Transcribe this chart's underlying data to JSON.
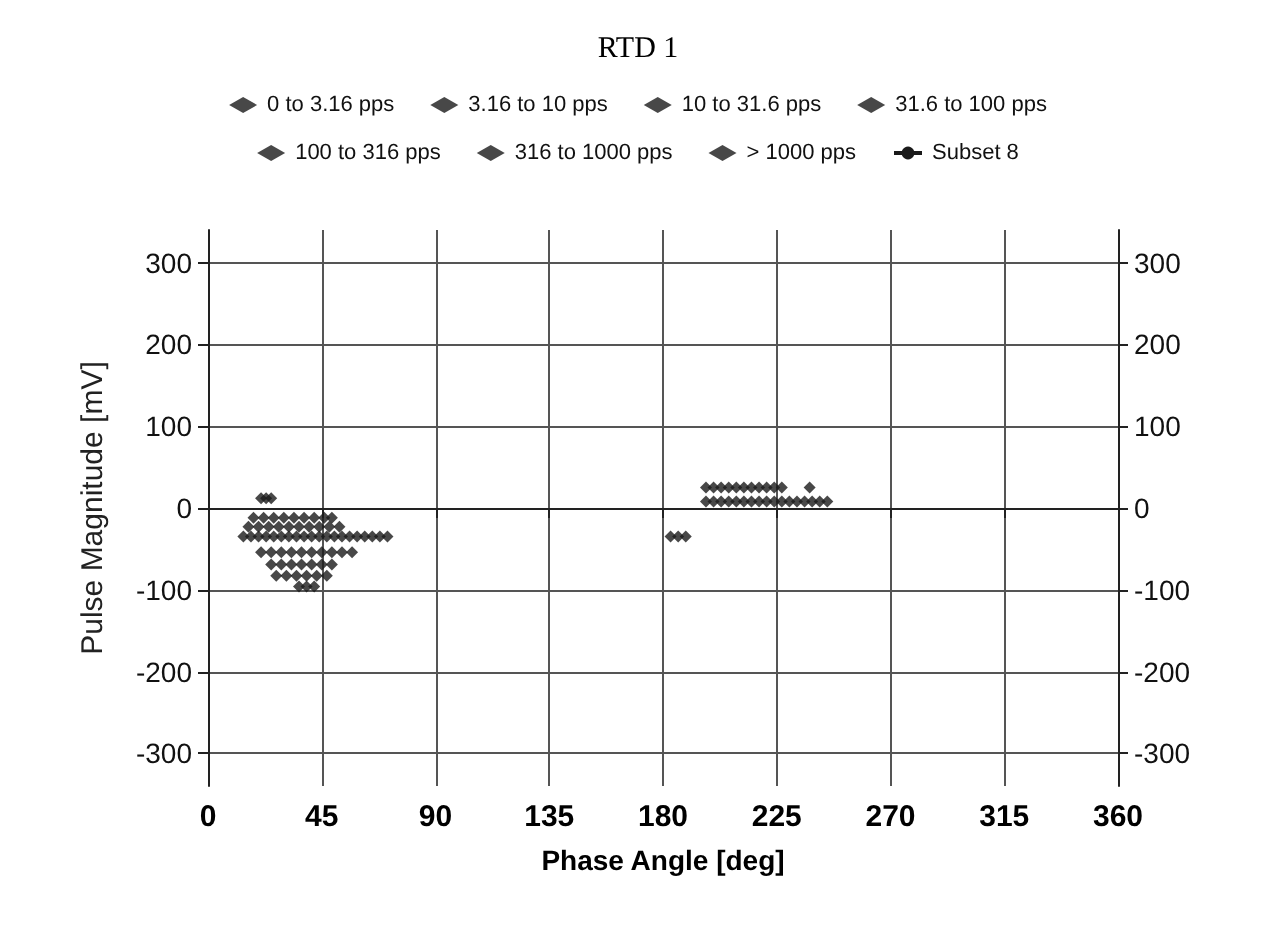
{
  "chart_data": {
    "type": "scatter",
    "title": "RTD 1",
    "xlabel": "Phase Angle [deg]",
    "ylabel": "Pulse Magnitude [mV]",
    "xlim": [
      0,
      360
    ],
    "xticks": [
      0,
      45,
      90,
      135,
      180,
      225,
      270,
      315,
      360
    ],
    "ylim": [
      -340,
      340
    ],
    "yticks": [
      -300,
      -200,
      -100,
      0,
      100,
      200,
      300
    ],
    "y2lim": [
      -340,
      340
    ],
    "y2ticks": [
      -300,
      -200,
      -100,
      0,
      100,
      200,
      300
    ],
    "grid": true,
    "legend": "top",
    "marker": "diamond",
    "series": [
      {
        "name": "0 to 3.16 pps",
        "color": "#1a1a1a",
        "x": [
          21,
          23,
          25,
          18,
          22,
          26,
          30,
          34,
          38,
          42,
          46,
          49,
          16,
          20,
          24,
          28,
          32,
          36,
          40,
          44,
          48,
          52,
          14,
          17,
          20,
          23,
          26,
          29,
          32,
          35,
          38,
          41,
          44,
          47,
          50,
          53,
          56,
          59,
          62,
          65,
          68,
          71,
          21,
          25,
          29,
          33,
          37,
          41,
          45,
          49,
          53,
          57,
          25,
          29,
          33,
          37,
          41,
          45,
          49,
          27,
          31,
          35,
          39,
          43,
          47,
          36,
          39,
          42,
          183,
          186,
          189,
          197,
          200,
          203,
          206,
          209,
          212,
          215,
          218,
          221,
          224,
          227,
          238,
          197,
          200,
          203,
          206,
          209,
          212,
          215,
          218,
          221,
          224,
          227,
          230,
          233,
          236,
          239,
          242,
          245
        ],
        "values": [
          12,
          12,
          12,
          -12,
          -12,
          -12,
          -12,
          -12,
          -12,
          -12,
          -12,
          -12,
          -23,
          -23,
          -23,
          -23,
          -23,
          -23,
          -23,
          -23,
          -23,
          -23,
          -35,
          -35,
          -35,
          -35,
          -35,
          -35,
          -35,
          -35,
          -35,
          -35,
          -35,
          -35,
          -35,
          -35,
          -35,
          -35,
          -35,
          -35,
          -35,
          -35,
          -54,
          -54,
          -54,
          -54,
          -54,
          -54,
          -54,
          -54,
          -54,
          -54,
          -69,
          -69,
          -69,
          -69,
          -69,
          -69,
          -69,
          -83,
          -83,
          -83,
          -83,
          -83,
          -83,
          -96,
          -96,
          -96,
          -35,
          -35,
          -35,
          25,
          25,
          25,
          25,
          25,
          25,
          25,
          25,
          25,
          25,
          25,
          25,
          8,
          8,
          8,
          8,
          8,
          8,
          8,
          8,
          8,
          8,
          8,
          8,
          8,
          8,
          8,
          8,
          8
        ]
      },
      {
        "name": "3.16 to 10 pps",
        "color": "#1a1a1a"
      },
      {
        "name": "10 to 31.6 pps",
        "color": "#1a1a1a"
      },
      {
        "name": "31.6 to 100 pps",
        "color": "#1a1a1a"
      },
      {
        "name": "100 to 316 pps",
        "color": "#1a1a1a"
      },
      {
        "name": "316 to 1000 pps",
        "color": "#1a1a1a"
      },
      {
        "name": "> 1000 pps",
        "color": "#1a1a1a"
      },
      {
        "name": "Subset 8",
        "type": "line",
        "color": "#1a1a1a"
      }
    ]
  }
}
